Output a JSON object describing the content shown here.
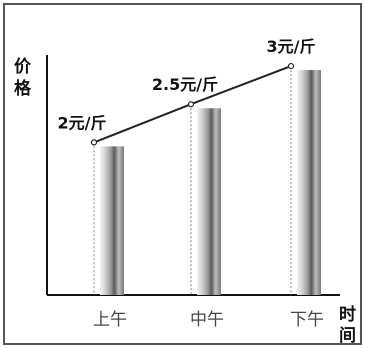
{
  "chart_data": {
    "type": "bar",
    "categories": [
      "上午",
      "中午",
      "下午"
    ],
    "values": [
      2,
      2.5,
      3
    ],
    "data_labels": [
      "2元/斤",
      "2.5元/斤",
      "3元/斤"
    ],
    "ylabel_chars": [
      "价",
      "格"
    ],
    "xlabel_chars": [
      "时",
      "间"
    ],
    "ylim": [
      0,
      3.25
    ],
    "grid": false,
    "legend": "none",
    "trend_line": true,
    "colors": {
      "bar_light": "#f2f2f2",
      "bar_dark": "#5a5a5a",
      "line": "#222222"
    }
  }
}
